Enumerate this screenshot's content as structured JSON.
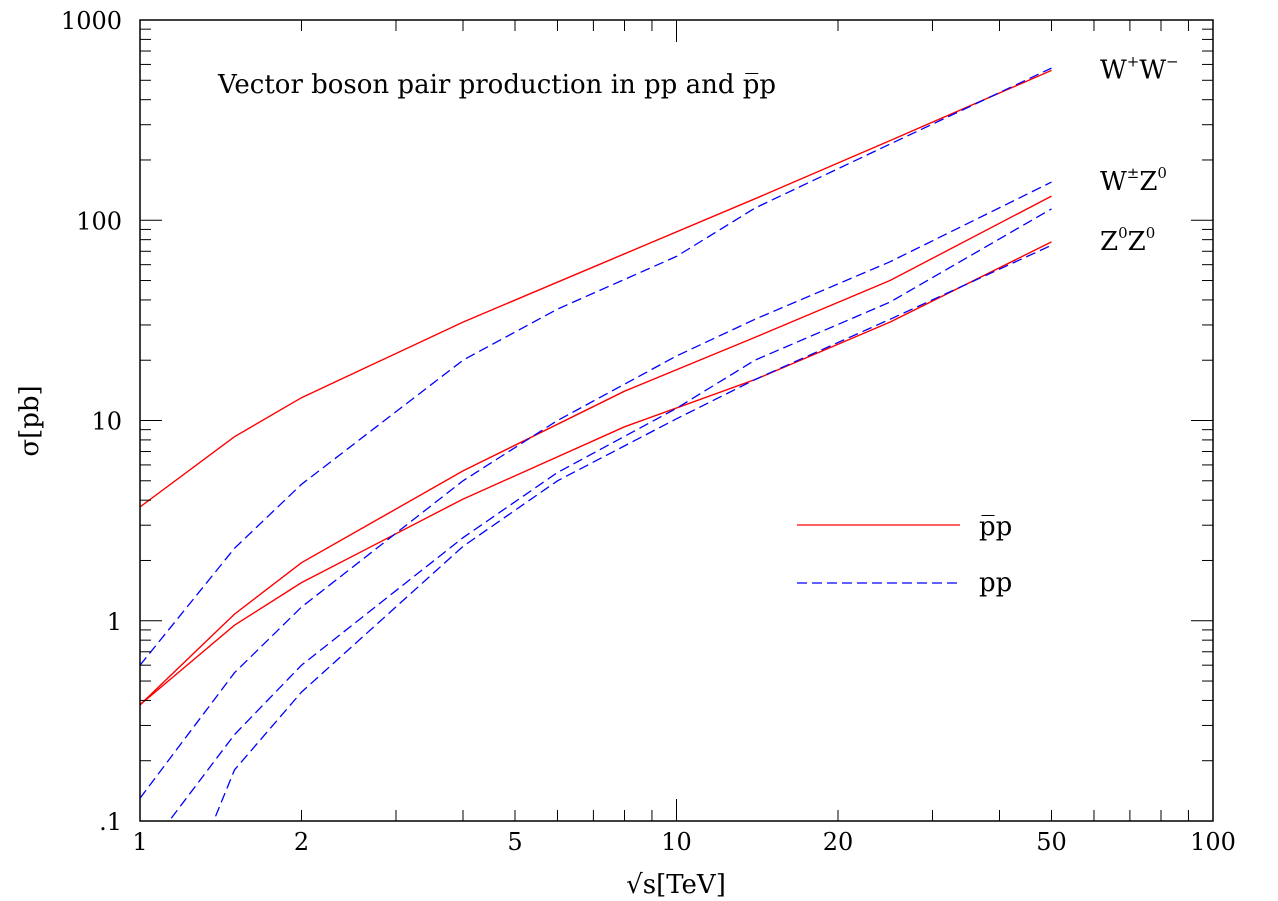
{
  "chart_data": {
    "type": "line",
    "title": "Vector boson pair production in pp and p̅p",
    "xlabel": "√s[TeV]",
    "ylabel": "σ[pb]",
    "x_scale": "log",
    "y_scale": "log",
    "xlim": [
      1,
      100
    ],
    "ylim": [
      0.1,
      1000
    ],
    "x_ticks": [
      {
        "value": 1,
        "label": "1"
      },
      {
        "value": 2,
        "label": "2"
      },
      {
        "value": 5,
        "label": "5"
      },
      {
        "value": 10,
        "label": "10"
      },
      {
        "value": 20,
        "label": "20"
      },
      {
        "value": 50,
        "label": "50"
      },
      {
        "value": 100,
        "label": "100"
      }
    ],
    "y_ticks": [
      {
        "value": 0.1,
        "label": ".1"
      },
      {
        "value": 1,
        "label": "1"
      },
      {
        "value": 10,
        "label": "10"
      },
      {
        "value": 100,
        "label": "100"
      },
      {
        "value": 1000,
        "label": "1000"
      }
    ],
    "grid": false,
    "legend_position": "center-right",
    "legend": [
      {
        "label": "p̅p",
        "color": "#ff0000",
        "style": "solid"
      },
      {
        "label": "pp",
        "color": "#0000ff",
        "style": "dashed"
      }
    ],
    "annotations": [
      {
        "base1": "W",
        "sup1": "+",
        "base2": "W",
        "sup2": "−",
        "y": 560
      },
      {
        "base1": "W",
        "sup1": "±",
        "base2": "Z",
        "sup2": "0",
        "y": 155
      },
      {
        "base1": "Z",
        "sup1": "0",
        "base2": "Z",
        "sup2": "0",
        "y": 78
      }
    ],
    "series": [
      {
        "collider": "p̅p",
        "process": "W+W-",
        "color": "#ff0000",
        "style": "solid",
        "points": [
          [
            1,
            3.7
          ],
          [
            1.5,
            8.3
          ],
          [
            2,
            13
          ],
          [
            4,
            31
          ],
          [
            8,
            68
          ],
          [
            14,
            128
          ],
          [
            25,
            250
          ],
          [
            50,
            560
          ]
        ]
      },
      {
        "collider": "p̅p",
        "process": "W±Z0",
        "color": "#ff0000",
        "style": "solid",
        "points": [
          [
            1,
            0.38
          ],
          [
            1.5,
            1.08
          ],
          [
            2,
            1.95
          ],
          [
            4,
            5.6
          ],
          [
            8,
            14
          ],
          [
            14,
            26
          ],
          [
            25,
            50
          ],
          [
            50,
            132
          ]
        ]
      },
      {
        "collider": "p̅p",
        "process": "Z0Z0",
        "color": "#ff0000",
        "style": "solid",
        "points": [
          [
            1,
            0.38
          ],
          [
            1.5,
            0.95
          ],
          [
            2,
            1.55
          ],
          [
            4,
            4.05
          ],
          [
            8,
            9.3
          ],
          [
            14,
            16
          ],
          [
            25,
            31
          ],
          [
            50,
            78
          ]
        ]
      },
      {
        "collider": "pp",
        "process": "W+W-",
        "color": "#0000ff",
        "style": "dashed",
        "points": [
          [
            1,
            0.6
          ],
          [
            1.5,
            2.3
          ],
          [
            2,
            4.8
          ],
          [
            4,
            20
          ],
          [
            6,
            36
          ],
          [
            10,
            66
          ],
          [
            14,
            115
          ],
          [
            25,
            240
          ],
          [
            50,
            575
          ]
        ]
      },
      {
        "collider": "pp",
        "process": "W±Z0",
        "color": "#0000ff",
        "style": "dashed",
        "points": [
          [
            1,
            0.13
          ],
          [
            1.5,
            0.55
          ],
          [
            2,
            1.17
          ],
          [
            4,
            5
          ],
          [
            6,
            10
          ],
          [
            10,
            21
          ],
          [
            14,
            32
          ],
          [
            25,
            62
          ],
          [
            50,
            155
          ]
        ]
      },
      {
        "collider": "pp",
        "process": "Z0Z0",
        "color": "#0000ff",
        "style": "dashed",
        "points": [
          [
            1.1,
            0.09
          ],
          [
            1.5,
            0.27
          ],
          [
            2,
            0.6
          ],
          [
            4,
            2.6
          ],
          [
            6,
            5.5
          ],
          [
            10,
            11.5
          ],
          [
            14,
            20
          ],
          [
            25,
            39
          ],
          [
            50,
            114
          ]
        ]
      },
      {
        "collider": "pp",
        "process": "Z0Z0-low",
        "color": "#0000ff",
        "style": "dashed",
        "points": [
          [
            1.35,
            0.09
          ],
          [
            1.5,
            0.18
          ],
          [
            2,
            0.44
          ],
          [
            4,
            2.35
          ],
          [
            6,
            5.0
          ],
          [
            10,
            10.2
          ],
          [
            14,
            16
          ],
          [
            25,
            32
          ],
          [
            50,
            75
          ]
        ]
      }
    ]
  }
}
